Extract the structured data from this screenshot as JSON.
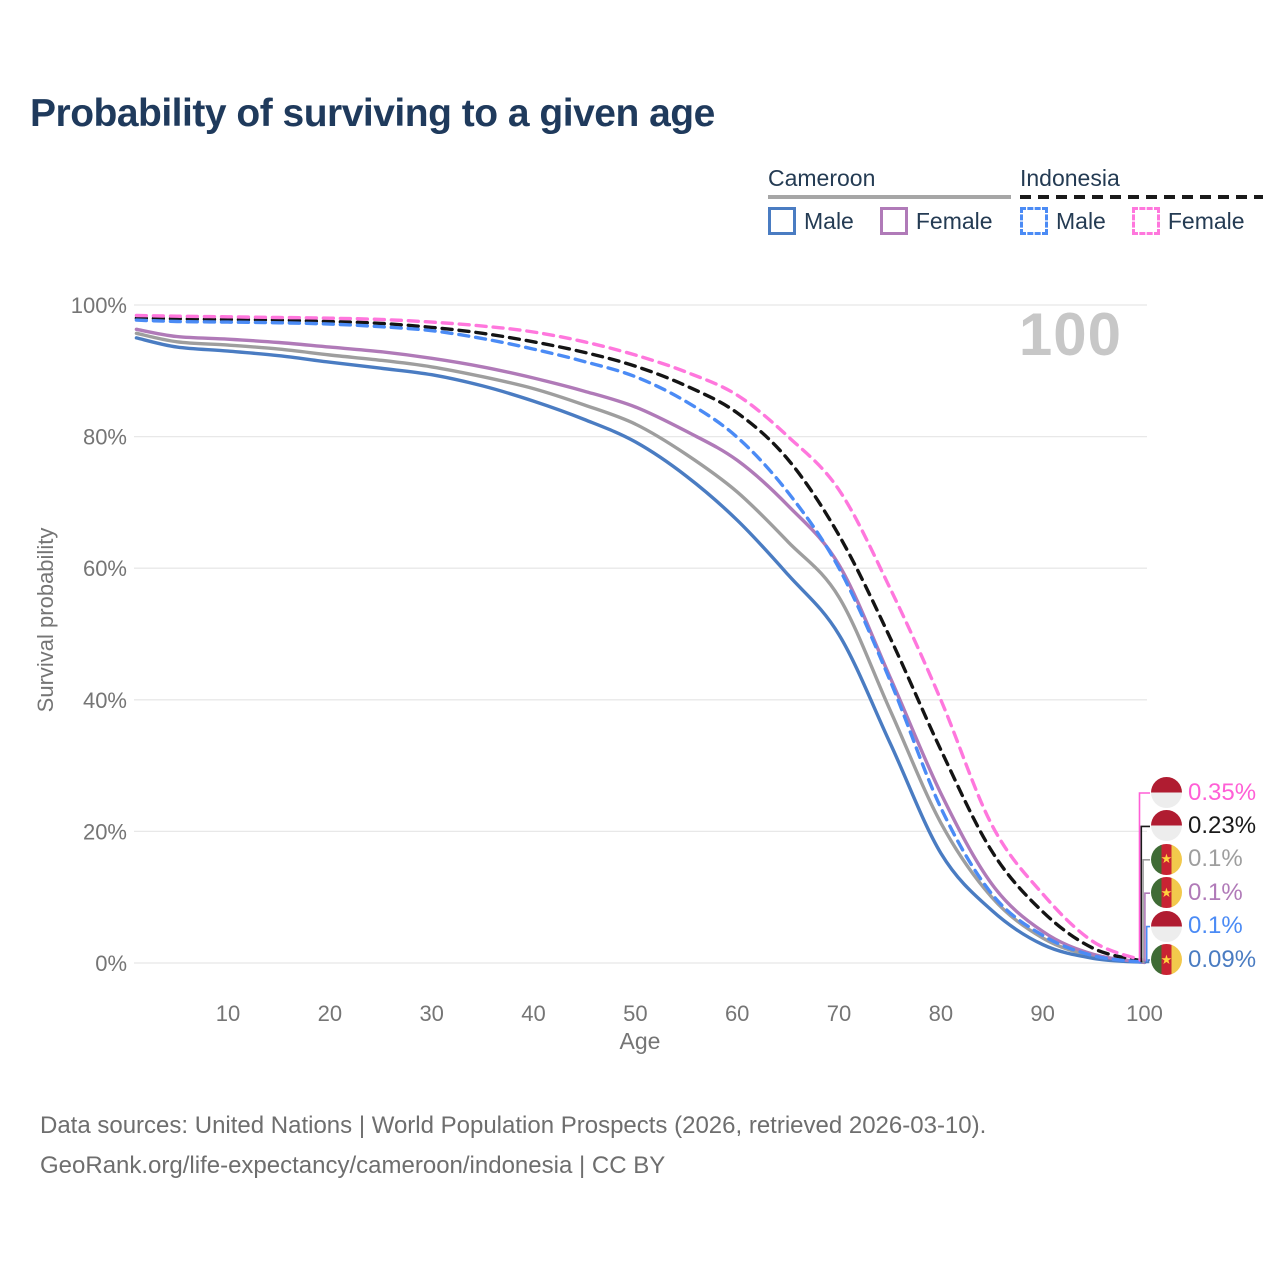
{
  "title": "Probability of surviving to a given age",
  "watermark_age": "100",
  "legend": {
    "cameroon": {
      "title": "Cameroon",
      "male": "Male",
      "female": "Female"
    },
    "indonesia": {
      "title": "Indonesia",
      "male": "Male",
      "female": "Female"
    }
  },
  "footer": {
    "line1": "Data sources: United Nations | World Population Prospects (2026, retrieved 2026-03-10).",
    "line2": "GeoRank.org/life-expectancy/cameroon/indonesia | CC BY"
  },
  "colors": {
    "title_text": "#1f3a5c",
    "axis_text": "#757575",
    "gridline": "#e8e8e8",
    "watermark": "#c7c7c7",
    "cameroon_male": "#4a7cc2",
    "cameroon_female": "#b07ab8",
    "cameroon_total": "#9e9e9e",
    "indonesia_male": "#4b8bf5",
    "indonesia_female": "#ff77dd",
    "indonesia_total": "#141414"
  },
  "chart_data": {
    "type": "line",
    "title": "Probability of surviving to a given age",
    "xlabel": "Age",
    "ylabel": "Survival probability",
    "xlim": [
      0,
      100
    ],
    "ylim": [
      0,
      100
    ],
    "grid": true,
    "legend_position": "top-right",
    "y_ticks": [
      {
        "label": "100%",
        "value": 100
      },
      {
        "label": "80%",
        "value": 80
      },
      {
        "label": "60%",
        "value": 60
      },
      {
        "label": "40%",
        "value": 40
      },
      {
        "label": "20%",
        "value": 20
      },
      {
        "label": "0%",
        "value": 0
      }
    ],
    "x_ticks": [
      {
        "label": "10",
        "value": 10
      },
      {
        "label": "20",
        "value": 20
      },
      {
        "label": "30",
        "value": 30
      },
      {
        "label": "40",
        "value": 40
      },
      {
        "label": "50",
        "value": 50
      },
      {
        "label": "60",
        "value": 60
      },
      {
        "label": "70",
        "value": 70
      },
      {
        "label": "80",
        "value": 80
      },
      {
        "label": "90",
        "value": 90
      },
      {
        "label": "100",
        "value": 100
      }
    ],
    "x": [
      1,
      5,
      10,
      15,
      20,
      25,
      30,
      35,
      40,
      45,
      50,
      55,
      60,
      65,
      70,
      75,
      80,
      85,
      90,
      95,
      100
    ],
    "series": [
      {
        "id": "cameroon-total",
        "name": "Cameroon (both sexes)",
        "country": "Cameroon",
        "sex": "total",
        "color": "#9e9e9e",
        "dashed": false,
        "values": [
          95.7,
          94.4,
          93.9,
          93.3,
          92.4,
          91.6,
          90.6,
          89.1,
          87.3,
          84.8,
          81.9,
          77.3,
          71.6,
          64.0,
          55.6,
          38.5,
          21.3,
          10.0,
          3.8,
          1.0,
          0.1
        ]
      },
      {
        "id": "cameroon-male",
        "name": "Cameroon Male",
        "country": "Cameroon",
        "sex": "male",
        "color": "#4a7cc2",
        "dashed": false,
        "values": [
          95.0,
          93.6,
          93.0,
          92.3,
          91.3,
          90.4,
          89.4,
          87.7,
          85.4,
          82.6,
          79.2,
          74.0,
          67.3,
          59.0,
          49.9,
          33.5,
          16.7,
          8.0,
          2.8,
          0.7,
          0.09
        ]
      },
      {
        "id": "cameroon-female",
        "name": "Cameroon Female",
        "country": "Cameroon",
        "sex": "female",
        "color": "#b07ab8",
        "dashed": false,
        "values": [
          96.3,
          95.2,
          94.8,
          94.3,
          93.6,
          92.9,
          91.9,
          90.6,
          88.9,
          86.9,
          84.5,
          80.8,
          76.4,
          69.5,
          60.5,
          43.5,
          25.8,
          12.0,
          4.8,
          1.3,
          0.1
        ]
      },
      {
        "id": "indonesia-total",
        "name": "Indonesia (both sexes)",
        "country": "Indonesia",
        "sex": "total",
        "color": "#141414",
        "dashed": true,
        "values": [
          98.0,
          97.9,
          97.8,
          97.7,
          97.5,
          97.2,
          96.6,
          95.7,
          94.4,
          92.8,
          90.7,
          87.7,
          83.6,
          76.5,
          65.0,
          49.5,
          32.4,
          17.0,
          7.8,
          2.2,
          0.23
        ]
      },
      {
        "id": "indonesia-male",
        "name": "Indonesia Male",
        "country": "Indonesia",
        "sex": "male",
        "color": "#4b8bf5",
        "dashed": true,
        "values": [
          97.7,
          97.5,
          97.4,
          97.3,
          97.1,
          96.7,
          96.1,
          94.9,
          93.3,
          91.4,
          89.1,
          85.3,
          79.9,
          71.5,
          60.0,
          43.0,
          23.6,
          10.5,
          4.2,
          1.1,
          0.1
        ]
      },
      {
        "id": "indonesia-female",
        "name": "Indonesia Female",
        "country": "Indonesia",
        "sex": "female",
        "color": "#ff77dd",
        "dashed": true,
        "values": [
          98.4,
          98.3,
          98.2,
          98.1,
          98.0,
          97.8,
          97.4,
          96.8,
          95.9,
          94.4,
          92.4,
          89.8,
          86.3,
          80.0,
          71.9,
          57.0,
          40.0,
          21.0,
          10.5,
          3.2,
          0.35
        ]
      }
    ],
    "end_labels": [
      {
        "label": "0.35%",
        "series_id": "indonesia-female",
        "flag": "indonesia",
        "color": "#ff5fd6"
      },
      {
        "label": "0.23%",
        "series_id": "indonesia-total",
        "flag": "indonesia",
        "color": "#1a1a1a"
      },
      {
        "label": "0.1%",
        "series_id": "cameroon-total",
        "flag": "cameroon",
        "color": "#9e9e9e"
      },
      {
        "label": "0.1%",
        "series_id": "cameroon-female",
        "flag": "cameroon",
        "color": "#b07ab8"
      },
      {
        "label": "0.1%",
        "series_id": "indonesia-male",
        "flag": "indonesia",
        "color": "#4b8bf5"
      },
      {
        "label": "0.09%",
        "series_id": "cameroon-male",
        "flag": "cameroon",
        "color": "#4a7cc2"
      }
    ]
  }
}
